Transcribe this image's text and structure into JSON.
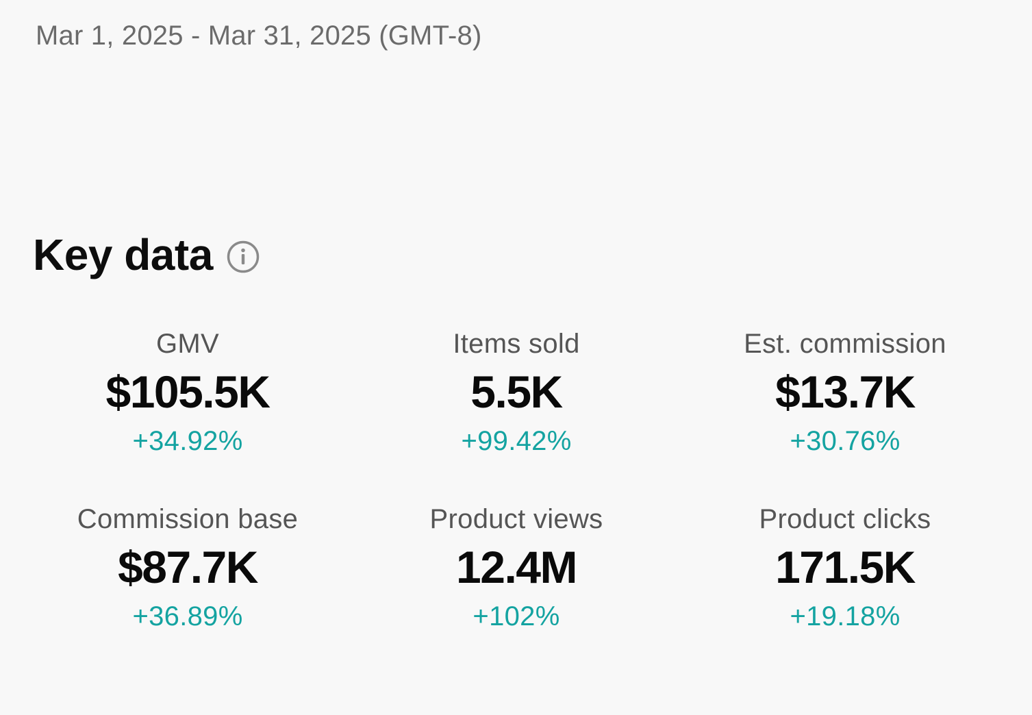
{
  "date_range": "Mar 1, 2025 - Mar 31, 2025 (GMT-8)",
  "key_data": {
    "title": "Key data",
    "info_icon": "info-circle-icon",
    "accent_color": "#14a3a1",
    "metrics": [
      {
        "label": "GMV",
        "value": "$105.5K",
        "change": "+34.92%"
      },
      {
        "label": "Items sold",
        "value": "5.5K",
        "change": "+99.42%"
      },
      {
        "label": "Est. commission",
        "value": "$13.7K",
        "change": "+30.76%"
      },
      {
        "label": "Commission base",
        "value": "$87.7K",
        "change": "+36.89%"
      },
      {
        "label": "Product views",
        "value": "12.4M",
        "change": "+102%"
      },
      {
        "label": "Product clicks",
        "value": "171.5K",
        "change": "+19.18%"
      }
    ]
  }
}
